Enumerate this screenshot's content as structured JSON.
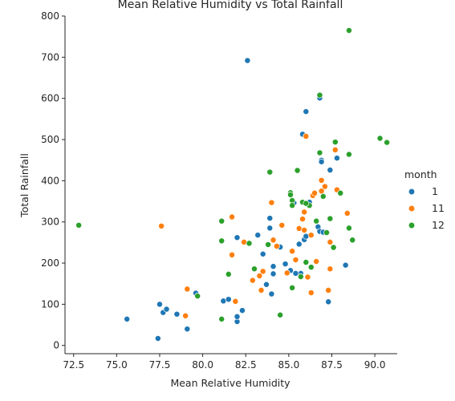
{
  "chart_data": {
    "type": "scatter",
    "title": "Mean Relative Humidity vs Total Rainfall",
    "xlabel": "Mean Relative Humidity",
    "ylabel": "Total Rainfall",
    "xlim": [
      72,
      91.3
    ],
    "ylim": [
      -20,
      800
    ],
    "xticks": [
      "72.5",
      "75.0",
      "77.5",
      "80.0",
      "82.5",
      "85.0",
      "87.5",
      "90.0"
    ],
    "xtick_values": [
      72.5,
      75.0,
      77.5,
      80.0,
      82.5,
      85.0,
      87.5,
      90.0
    ],
    "yticks": [
      "0",
      "100",
      "200",
      "300",
      "400",
      "500",
      "600",
      "700",
      "800"
    ],
    "ytick_values": [
      0,
      100,
      200,
      300,
      400,
      500,
      600,
      700,
      800
    ],
    "grid": false,
    "legend": {
      "title": "month",
      "placement": "right"
    },
    "series": [
      {
        "name": "1",
        "color": "#1f77b4",
        "points": [
          [
            75.6,
            64
          ],
          [
            77.4,
            17
          ],
          [
            77.5,
            100
          ],
          [
            77.7,
            80
          ],
          [
            77.9,
            88
          ],
          [
            78.5,
            76
          ],
          [
            79.1,
            40
          ],
          [
            79.6,
            127
          ],
          [
            81.2,
            108
          ],
          [
            81.5,
            112
          ],
          [
            82.0,
            58
          ],
          [
            82.0,
            70
          ],
          [
            82.3,
            85
          ],
          [
            82.0,
            262
          ],
          [
            82.6,
            692
          ],
          [
            83.2,
            268
          ],
          [
            83.5,
            222
          ],
          [
            83.9,
            309
          ],
          [
            83.7,
            148
          ],
          [
            84.0,
            125
          ],
          [
            84.1,
            192
          ],
          [
            84.1,
            174
          ],
          [
            84.5,
            239
          ],
          [
            84.8,
            198
          ],
          [
            85.1,
            182
          ],
          [
            85.3,
            346
          ],
          [
            85.6,
            246
          ],
          [
            85.7,
            175
          ],
          [
            85.8,
            513
          ],
          [
            85.9,
            257
          ],
          [
            86.0,
            568
          ],
          [
            86.0,
            265
          ],
          [
            86.2,
            348
          ],
          [
            86.7,
            288
          ],
          [
            86.8,
            601
          ],
          [
            86.9,
            450
          ],
          [
            86.9,
            446
          ],
          [
            86.8,
            277
          ],
          [
            87.0,
            275
          ],
          [
            87.3,
            106
          ],
          [
            87.4,
            426
          ],
          [
            87.8,
            455
          ],
          [
            88.3,
            195
          ],
          [
            85.4,
            175
          ],
          [
            83.9,
            285
          ]
        ]
      },
      {
        "name": "11",
        "color": "#ff7f0e",
        "points": [
          [
            77.6,
            290
          ],
          [
            79.0,
            72
          ],
          [
            79.1,
            137
          ],
          [
            81.7,
            312
          ],
          [
            81.7,
            220
          ],
          [
            81.9,
            107
          ],
          [
            82.4,
            251
          ],
          [
            82.9,
            158
          ],
          [
            83.3,
            169
          ],
          [
            83.4,
            134
          ],
          [
            83.5,
            180
          ],
          [
            84.0,
            347
          ],
          [
            84.1,
            256
          ],
          [
            84.3,
            241
          ],
          [
            84.6,
            292
          ],
          [
            84.9,
            176
          ],
          [
            85.2,
            229
          ],
          [
            85.4,
            208
          ],
          [
            85.6,
            284
          ],
          [
            85.8,
            307
          ],
          [
            85.9,
            324
          ],
          [
            85.9,
            280
          ],
          [
            86.0,
            508
          ],
          [
            86.1,
            166
          ],
          [
            86.3,
            268
          ],
          [
            86.3,
            128
          ],
          [
            86.4,
            364
          ],
          [
            86.5,
            370
          ],
          [
            86.6,
            204
          ],
          [
            86.9,
            401
          ],
          [
            87.1,
            386
          ],
          [
            87.3,
            134
          ],
          [
            87.4,
            186
          ],
          [
            87.4,
            251
          ],
          [
            87.7,
            475
          ],
          [
            87.8,
            378
          ],
          [
            88.4,
            321
          ],
          [
            86.9,
            375
          ]
        ]
      },
      {
        "name": "12",
        "color": "#2ca02c",
        "points": [
          [
            72.8,
            292
          ],
          [
            79.7,
            120
          ],
          [
            81.1,
            302
          ],
          [
            81.1,
            254
          ],
          [
            81.1,
            64
          ],
          [
            81.5,
            173
          ],
          [
            82.7,
            248
          ],
          [
            83.0,
            186
          ],
          [
            83.8,
            245
          ],
          [
            83.9,
            421
          ],
          [
            84.5,
            74
          ],
          [
            85.1,
            371
          ],
          [
            85.1,
            366
          ],
          [
            85.2,
            352
          ],
          [
            85.2,
            340
          ],
          [
            85.2,
            140
          ],
          [
            85.5,
            425
          ],
          [
            85.7,
            167
          ],
          [
            85.8,
            348
          ],
          [
            86.0,
            202
          ],
          [
            86.2,
            340
          ],
          [
            86.3,
            190
          ],
          [
            86.6,
            302
          ],
          [
            86.8,
            468
          ],
          [
            86.8,
            608
          ],
          [
            87.0,
            362
          ],
          [
            87.2,
            274
          ],
          [
            87.4,
            308
          ],
          [
            87.6,
            238
          ],
          [
            87.7,
            494
          ],
          [
            88.0,
            370
          ],
          [
            88.5,
            765
          ],
          [
            88.5,
            464
          ],
          [
            88.5,
            285
          ],
          [
            88.7,
            256
          ],
          [
            90.3,
            503
          ],
          [
            90.7,
            493
          ],
          [
            86.0,
            345
          ]
        ]
      }
    ]
  }
}
